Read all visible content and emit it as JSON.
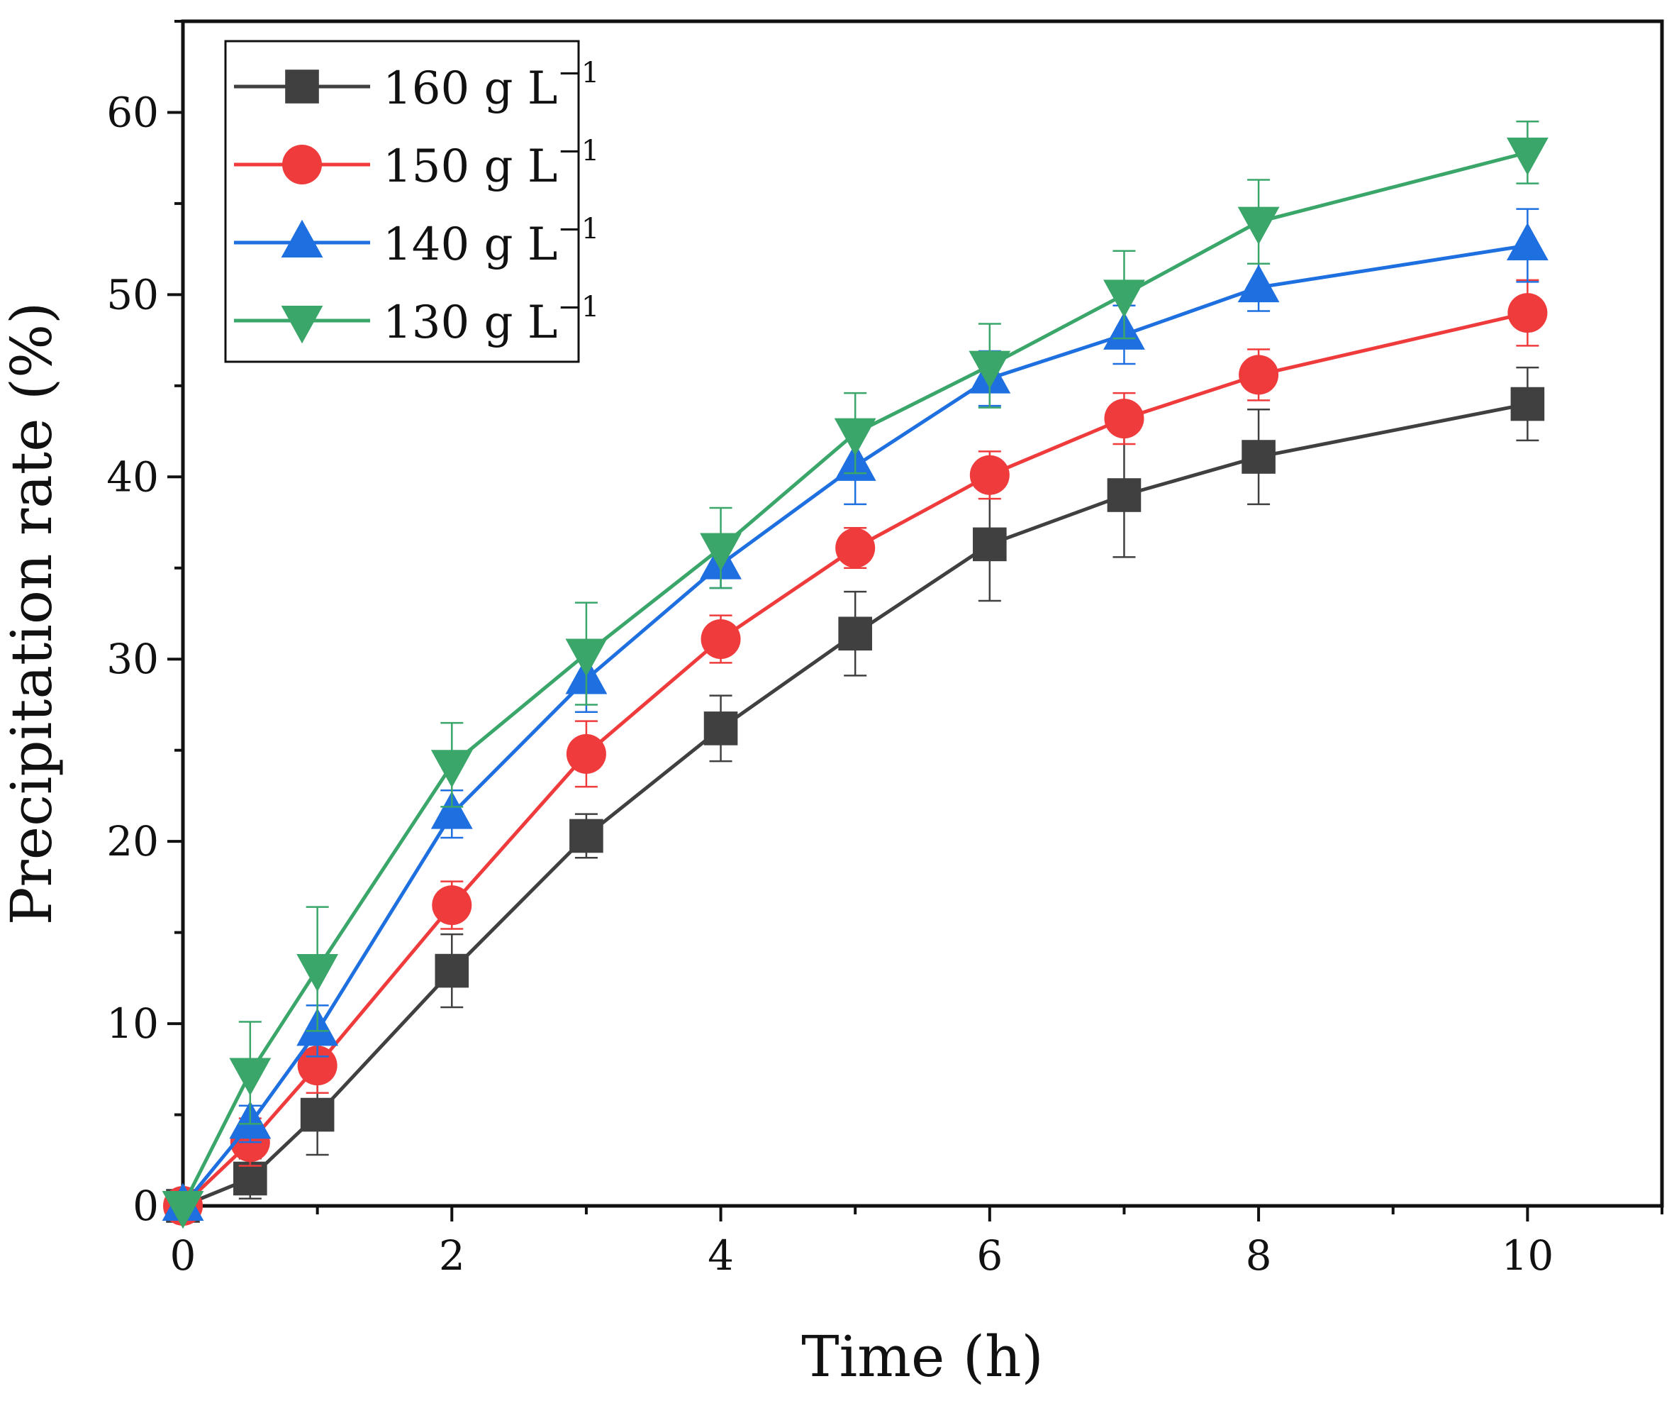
{
  "chart_data": {
    "type": "line",
    "title": "",
    "xlabel": "Time (h)",
    "ylabel": "Precipitation rate (%)",
    "xlim": [
      0,
      11
    ],
    "ylim": [
      0,
      65
    ],
    "xticks": [
      0,
      2,
      4,
      6,
      8,
      10
    ],
    "yticks": [
      0,
      10,
      20,
      30,
      40,
      50,
      60
    ],
    "grid": false,
    "legend_position": "top-left",
    "x": [
      0,
      0.5,
      1,
      2,
      3,
      4,
      5,
      6,
      7,
      8,
      10
    ],
    "series": [
      {
        "name": "160 g L",
        "unit_superscript": "−1",
        "color": "#404040",
        "marker": "square",
        "values": [
          0,
          1.5,
          5.0,
          12.9,
          20.3,
          26.2,
          31.4,
          36.3,
          39.0,
          41.1,
          44.0
        ],
        "errors": [
          0,
          1.1,
          2.2,
          2.0,
          1.2,
          1.8,
          2.3,
          3.1,
          3.4,
          2.6,
          2.0
        ]
      },
      {
        "name": "150 g L",
        "unit_superscript": "−1",
        "color": "#ef3b3b",
        "marker": "circle",
        "values": [
          0,
          3.5,
          7.7,
          16.5,
          24.8,
          31.1,
          36.1,
          40.1,
          43.2,
          45.6,
          49.0
        ],
        "errors": [
          0,
          1.3,
          1.5,
          1.3,
          1.8,
          1.3,
          1.1,
          1.3,
          1.4,
          1.4,
          1.8
        ]
      },
      {
        "name": "140 g L",
        "unit_superscript": "−1",
        "color": "#1e6fe0",
        "marker": "triangle-up",
        "values": [
          0,
          4.5,
          9.6,
          21.5,
          28.9,
          35.2,
          40.6,
          45.4,
          47.8,
          50.4,
          52.7
        ],
        "errors": [
          0,
          1.0,
          1.4,
          1.3,
          1.8,
          1.3,
          2.1,
          1.5,
          1.6,
          1.3,
          2.0
        ]
      },
      {
        "name": "130 g L",
        "unit_superscript": "−1",
        "color": "#3aa66a",
        "marker": "triangle-down",
        "values": [
          0,
          7.3,
          13.0,
          24.2,
          30.3,
          36.1,
          42.4,
          46.1,
          50.0,
          54.0,
          57.8
        ],
        "errors": [
          0,
          2.8,
          3.4,
          2.3,
          2.8,
          2.2,
          2.2,
          2.3,
          2.4,
          2.3,
          1.7
        ]
      }
    ]
  }
}
